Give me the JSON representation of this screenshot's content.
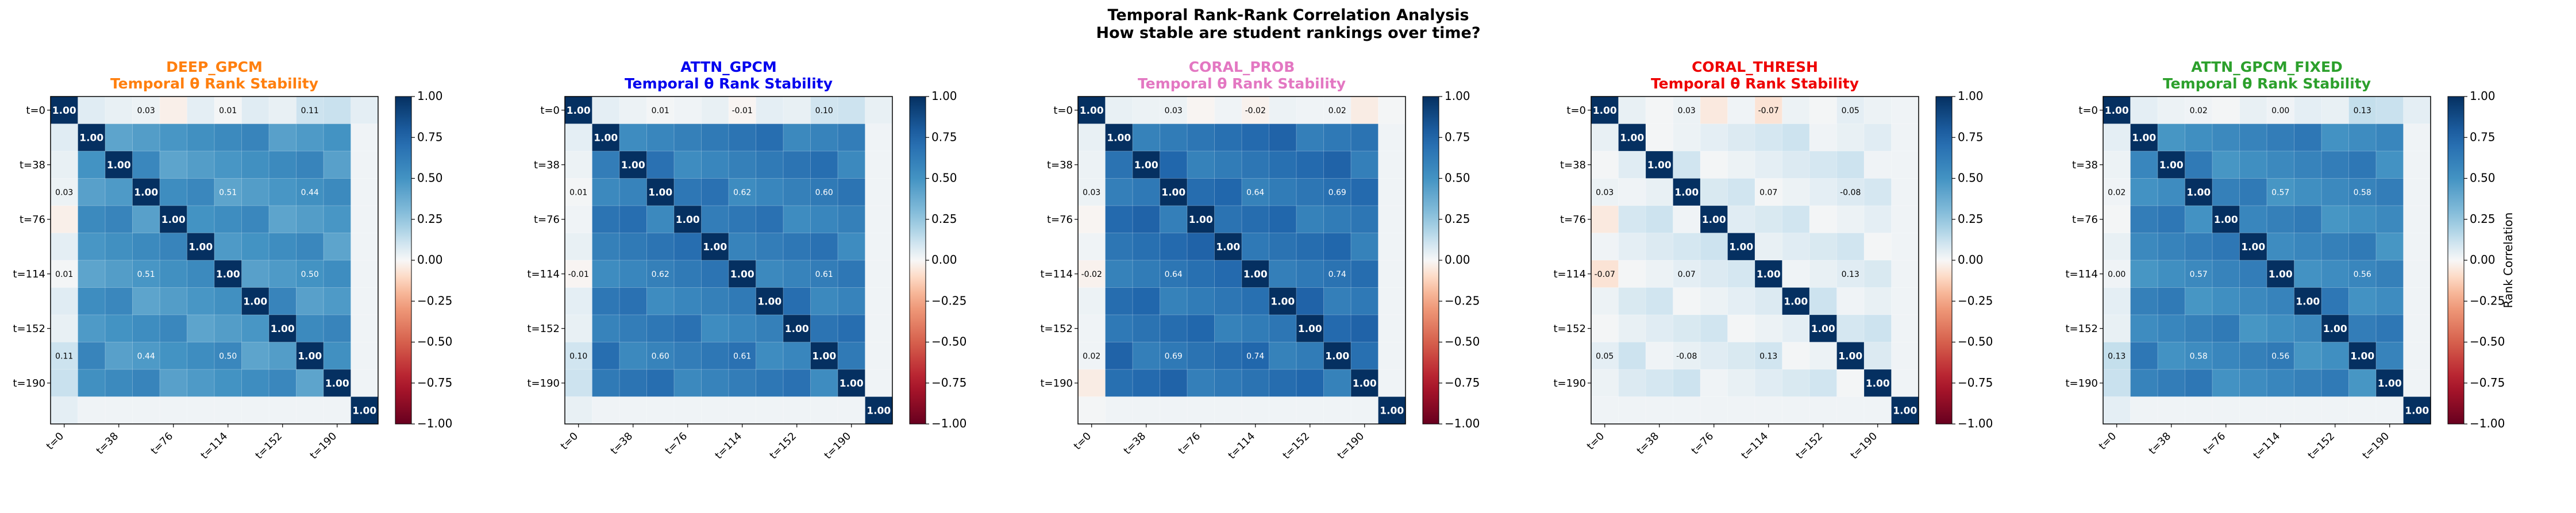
{
  "figure": {
    "title_line1": "Temporal Rank-Rank Correlation Analysis",
    "title_line2": "How stable are student rankings over time?"
  },
  "colorbar": {
    "ticks": [
      1.0,
      0.75,
      0.5,
      0.25,
      0.0,
      -0.25,
      -0.5,
      -0.75,
      -1.0
    ],
    "tick_labels": [
      "1.00",
      "0.75",
      "0.50",
      "0.25",
      "0.00",
      "−0.25",
      "−0.50",
      "−0.75",
      "−1.00"
    ],
    "label": "Rank Correlation",
    "vmin": -1,
    "vmax": 1
  },
  "axis_labels": {
    "x": [
      "t=0",
      "t=38",
      "t=76",
      "t=114",
      "t=152",
      "t=190"
    ],
    "y": [
      "t=0",
      "t=38",
      "t=76",
      "t=114",
      "t=152",
      "t=190"
    ]
  },
  "chart_data": [
    {
      "type": "heatmap",
      "name": "DEEP_GPCM",
      "subtitle": "Temporal θ Rank Stability",
      "title_color": "#ff7f0e",
      "size": 12,
      "timepoint_labels": [
        "t=0",
        "t=38",
        "t=76",
        "t=114",
        "t=152",
        "t=190"
      ],
      "grid_labels": [
        [
          "0-3",
          "0.03"
        ],
        [
          "0-6",
          "0.01"
        ],
        [
          "0-9",
          "0.11"
        ],
        [
          "3-6",
          "0.51"
        ],
        [
          "3-9",
          "0.44"
        ],
        [
          "6-9",
          "0.50"
        ]
      ],
      "base": [
        [
          0,
          0.01
        ],
        [
          1,
          0.06
        ],
        [
          2,
          0.04
        ],
        [
          3,
          0.03
        ],
        [
          4,
          -0.03
        ],
        [
          5,
          0.05
        ],
        [
          6,
          0.01
        ],
        [
          7,
          0.06
        ],
        [
          8,
          0.04
        ],
        [
          9,
          0.11
        ],
        [
          10,
          0.12
        ],
        [
          11,
          0.05
        ]
      ],
      "offdiag_value": 0.5
    },
    {
      "type": "heatmap",
      "name": "ATTN_GPCM",
      "subtitle": "Temporal θ Rank Stability",
      "title_color": "#0000ee",
      "size": 12,
      "timepoint_labels": [
        "t=0",
        "t=38",
        "t=76",
        "t=114",
        "t=152",
        "t=190"
      ],
      "grid_labels": [
        [
          "0-3",
          "0.01"
        ],
        [
          "0-6",
          "-0.01"
        ],
        [
          "0-9",
          "0.10"
        ],
        [
          "3-6",
          "0.62"
        ],
        [
          "3-9",
          "0.60"
        ],
        [
          "6-9",
          "0.61"
        ]
      ],
      "base": [
        [
          0,
          0.03
        ],
        [
          1,
          0.05
        ],
        [
          2,
          0.03
        ],
        [
          3,
          0.01
        ],
        [
          4,
          0.02
        ],
        [
          5,
          0.04
        ],
        [
          6,
          -0.01
        ],
        [
          7,
          0.05
        ],
        [
          8,
          0.04
        ],
        [
          9,
          0.1
        ],
        [
          10,
          0.11
        ],
        [
          11,
          0.04
        ]
      ],
      "offdiag_value": 0.62
    },
    {
      "type": "heatmap",
      "name": "CORAL_PROB",
      "subtitle": "Temporal θ Rank Stability",
      "title_color": "#e377c2",
      "size": 12,
      "timepoint_labels": [
        "t=0",
        "t=38",
        "t=76",
        "t=114",
        "t=152",
        "t=190"
      ],
      "grid_labels": [
        [
          "0-3",
          "0.03"
        ],
        [
          "0-6",
          "-0.02"
        ],
        [
          "0-9",
          "0.02"
        ],
        [
          "3-6",
          "0.64"
        ],
        [
          "3-9",
          "0.69"
        ],
        [
          "6-9",
          "0.74"
        ]
      ],
      "base": [
        [
          0,
          0.02
        ],
        [
          1,
          0.04
        ],
        [
          2,
          0.03
        ],
        [
          3,
          0.03
        ],
        [
          4,
          -0.01
        ],
        [
          5,
          0.02
        ],
        [
          6,
          -0.02
        ],
        [
          7,
          0.03
        ],
        [
          8,
          0.02
        ],
        [
          9,
          0.02
        ],
        [
          10,
          -0.04
        ],
        [
          11,
          0.01
        ]
      ],
      "offdiag_value": 0.68
    },
    {
      "type": "heatmap",
      "name": "CORAL_THRESH",
      "subtitle": "Temporal θ Rank Stability",
      "title_color": "#ee0000",
      "size": 12,
      "timepoint_labels": [
        "t=0",
        "t=38",
        "t=76",
        "t=114",
        "t=152",
        "t=190"
      ],
      "grid_labels": [
        [
          "0-3",
          "0.03"
        ],
        [
          "0-6",
          "-0.07"
        ],
        [
          "0-9",
          "0.05"
        ],
        [
          "3-6",
          "0.07"
        ],
        [
          "3-9",
          "-0.08"
        ],
        [
          "6-9",
          "0.13"
        ]
      ],
      "base": [
        [
          0,
          0.02
        ],
        [
          1,
          0.04
        ],
        [
          2,
          0.01
        ],
        [
          3,
          0.03
        ],
        [
          4,
          -0.05
        ],
        [
          5,
          0.02
        ],
        [
          6,
          -0.07
        ],
        [
          7,
          0.03
        ],
        [
          8,
          0.01
        ],
        [
          9,
          0.05
        ],
        [
          10,
          0.03
        ],
        [
          11,
          0.02
        ]
      ],
      "offdiag_value": 0.06
    },
    {
      "type": "heatmap",
      "name": "ATTN_GPCM_FIXED",
      "subtitle": "Temporal θ Rank Stability",
      "title_color": "#2ca02c",
      "size": 12,
      "timepoint_labels": [
        "t=0",
        "t=38",
        "t=76",
        "t=114",
        "t=152",
        "t=190"
      ],
      "grid_labels": [
        [
          "0-3",
          "0.02"
        ],
        [
          "0-6",
          "0.00"
        ],
        [
          "0-9",
          "0.13"
        ],
        [
          "3-6",
          "0.57"
        ],
        [
          "3-9",
          "0.58"
        ],
        [
          "6-9",
          "0.56"
        ]
      ],
      "base": [
        [
          0,
          0.02
        ],
        [
          1,
          0.05
        ],
        [
          2,
          0.03
        ],
        [
          3,
          0.02
        ],
        [
          4,
          0.01
        ],
        [
          5,
          0.04
        ],
        [
          6,
          0.0
        ],
        [
          7,
          0.05
        ],
        [
          8,
          0.04
        ],
        [
          9,
          0.13
        ],
        [
          10,
          0.12
        ],
        [
          11,
          0.05
        ]
      ],
      "offdiag_value": 0.57
    }
  ]
}
